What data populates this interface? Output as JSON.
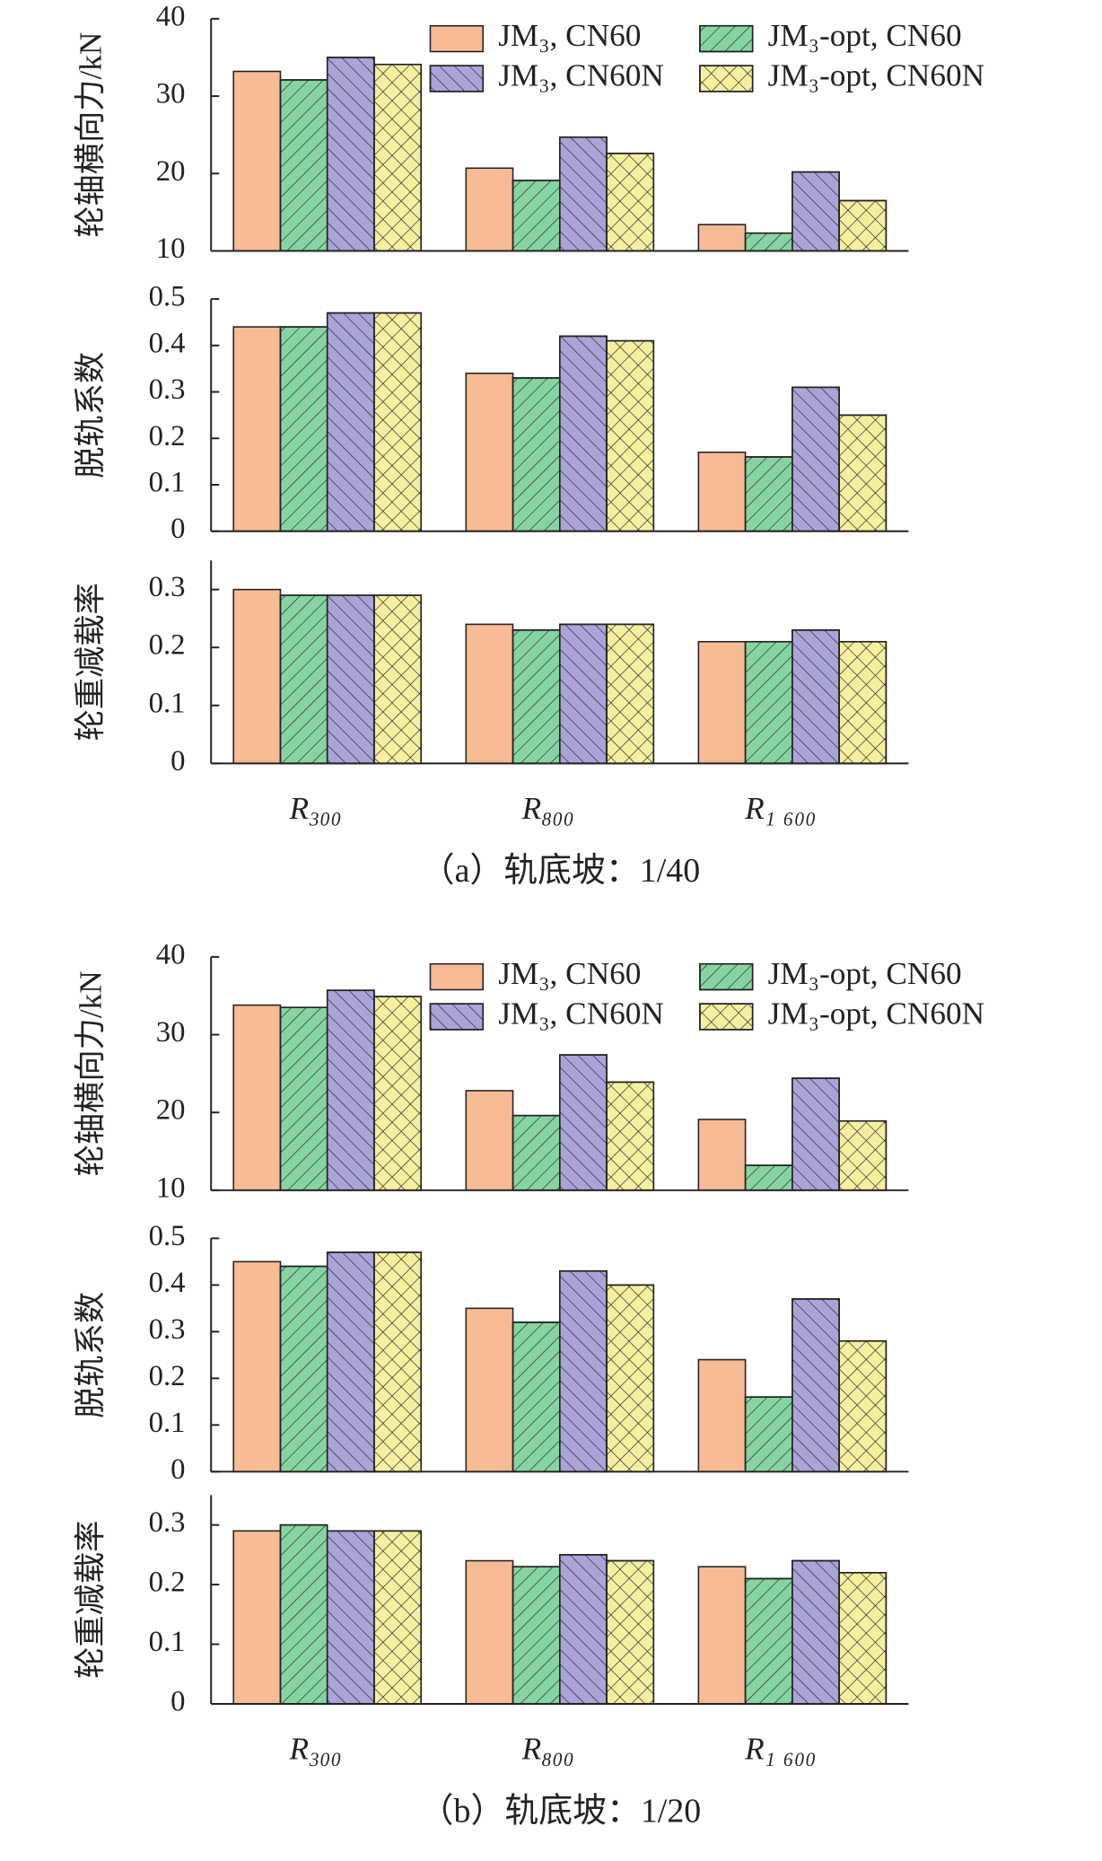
{
  "chart_data": [
    {
      "type": "bar",
      "caption": "（a）轨底坡：1/40",
      "legend": "upper right",
      "categories": [
        "R₃₀₀",
        "R₈₀₀",
        "R₁ ₆₀₀"
      ],
      "series": [
        {
          "name": "JM₃, CN60",
          "color": "#f7bb96"
        },
        {
          "name": "JM₃-opt, CN60",
          "color": "#86d4a2",
          "hatch": "/"
        },
        {
          "name": "JM₃, CN60N",
          "color": "#aaa4d8",
          "hatch": "\\"
        },
        {
          "name": "JM₃-opt, CN60N",
          "color": "#f4f0a0",
          "hatch": "x"
        }
      ],
      "panels": [
        {
          "ylabel": "轮轴横向力/kN",
          "ylim": [
            10,
            40
          ],
          "yticks": [
            10,
            20,
            30,
            40
          ],
          "series": [
            {
              "values": [
                33.2,
                20.7,
                13.4
              ]
            },
            {
              "values": [
                32.1,
                19.1,
                12.3
              ]
            },
            {
              "values": [
                35.0,
                24.7,
                20.2
              ]
            },
            {
              "values": [
                34.1,
                22.6,
                16.5
              ]
            }
          ]
        },
        {
          "ylabel": "脱轨系数",
          "ylim": [
            0,
            0.5
          ],
          "yticks": [
            0,
            0.1,
            0.2,
            0.3,
            0.4,
            0.5
          ],
          "series": [
            {
              "values": [
                0.44,
                0.34,
                0.17
              ]
            },
            {
              "values": [
                0.44,
                0.33,
                0.16
              ]
            },
            {
              "values": [
                0.47,
                0.42,
                0.31
              ]
            },
            {
              "values": [
                0.47,
                0.41,
                0.25
              ]
            }
          ]
        },
        {
          "ylabel": "轮重减载率",
          "ylim": [
            0,
            0.35
          ],
          "yticks": [
            0,
            0.1,
            0.2,
            0.3
          ],
          "series": [
            {
              "values": [
                0.3,
                0.24,
                0.21
              ]
            },
            {
              "values": [
                0.29,
                0.23,
                0.21
              ]
            },
            {
              "values": [
                0.29,
                0.24,
                0.23
              ]
            },
            {
              "values": [
                0.29,
                0.24,
                0.21
              ]
            }
          ]
        }
      ]
    },
    {
      "type": "bar",
      "caption": "（b）轨底坡：1/20",
      "legend": "upper right",
      "categories": [
        "R₃₀₀",
        "R₈₀₀",
        "R₁ ₆₀₀"
      ],
      "series": [
        {
          "name": "JM₃, CN60",
          "color": "#f7bb96"
        },
        {
          "name": "JM₃-opt, CN60",
          "color": "#86d4a2",
          "hatch": "/"
        },
        {
          "name": "JM₃, CN60N",
          "color": "#aaa4d8",
          "hatch": "\\"
        },
        {
          "name": "JM₃-opt, CN60N",
          "color": "#f4f0a0",
          "hatch": "x"
        }
      ],
      "panels": [
        {
          "ylabel": "轮轴横向力/kN",
          "ylim": [
            10,
            40
          ],
          "yticks": [
            10,
            20,
            30,
            40
          ],
          "series": [
            {
              "values": [
                33.8,
                22.8,
                19.1
              ]
            },
            {
              "values": [
                33.5,
                19.6,
                13.2
              ]
            },
            {
              "values": [
                35.7,
                27.4,
                24.4
              ]
            },
            {
              "values": [
                34.9,
                23.9,
                18.9
              ]
            }
          ]
        },
        {
          "ylabel": "脱轨系数",
          "ylim": [
            0,
            0.5
          ],
          "yticks": [
            0,
            0.1,
            0.2,
            0.3,
            0.4,
            0.5
          ],
          "series": [
            {
              "values": [
                0.45,
                0.35,
                0.24
              ]
            },
            {
              "values": [
                0.44,
                0.32,
                0.16
              ]
            },
            {
              "values": [
                0.47,
                0.43,
                0.37
              ]
            },
            {
              "values": [
                0.47,
                0.4,
                0.28
              ]
            }
          ]
        },
        {
          "ylabel": "轮重减载率",
          "ylim": [
            0,
            0.35
          ],
          "yticks": [
            0,
            0.1,
            0.2,
            0.3
          ],
          "series": [
            {
              "values": [
                0.29,
                0.24,
                0.23
              ]
            },
            {
              "values": [
                0.3,
                0.23,
                0.21
              ]
            },
            {
              "values": [
                0.29,
                0.25,
                0.24
              ]
            },
            {
              "values": [
                0.29,
                0.24,
                0.22
              ]
            }
          ]
        }
      ]
    }
  ]
}
